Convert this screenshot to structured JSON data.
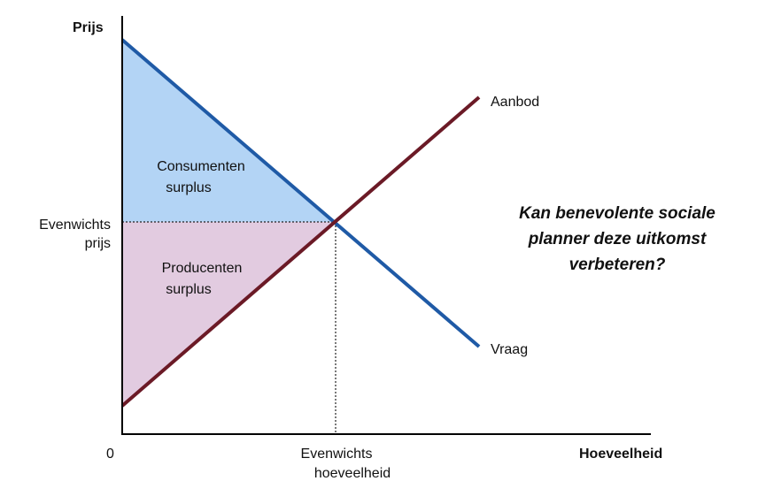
{
  "axes": {
    "y_label": "Prijs",
    "x_label": "Hoeveelheid",
    "origin_label": "0"
  },
  "equilibrium": {
    "price_label_line1": "Evenwichts",
    "price_label_line2": "prijs",
    "quantity_label_line1": "Evenwichts",
    "quantity_label_line2": "hoeveelheid"
  },
  "curves": {
    "supply_label": "Aanbod",
    "demand_label": "Vraag"
  },
  "areas": {
    "consumer_line1": "Consumenten",
    "consumer_line2": "surplus",
    "producer_line1": "Producenten",
    "producer_line2": "surplus"
  },
  "question": {
    "line1": "Kan benevolente sociale",
    "line2": "planner deze uitkomst",
    "line3": "verbeteren?"
  },
  "colors": {
    "demand": "#1f5aa6",
    "supply": "#6b1a26",
    "consumer_fill": "#b3d4f5",
    "producer_fill": "#e2cbe0",
    "axis": "#000000"
  }
}
